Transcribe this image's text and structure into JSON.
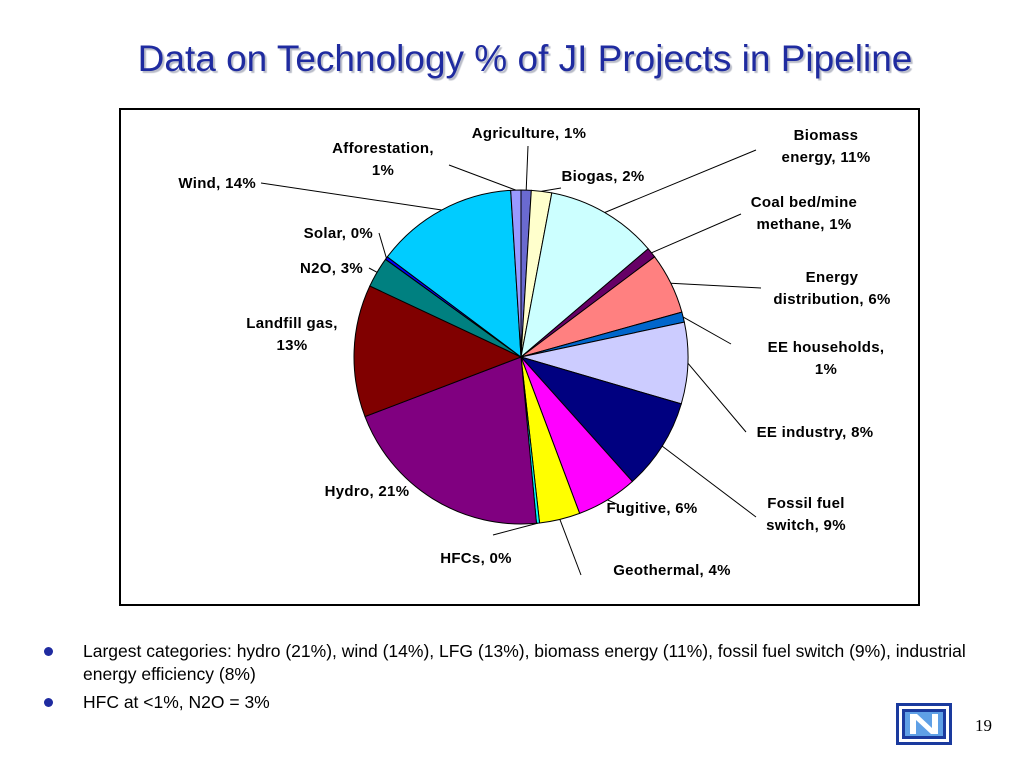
{
  "title": "Data on Technology % of JI Projects in Pipeline",
  "chart_data": {
    "type": "pie",
    "title": "",
    "slices": [
      {
        "label": "Agriculture, 1%",
        "value": 1,
        "color": "#6a6ad0"
      },
      {
        "label": "Biogas, 2%",
        "value": 2,
        "color": "#ffffcc"
      },
      {
        "label": "Biomass energy, 11%",
        "value": 11,
        "color": "#ccffff"
      },
      {
        "label": "Coal bed/mine methane, 1%",
        "value": 1,
        "color": "#660066"
      },
      {
        "label": "Energy distribution, 6%",
        "value": 6,
        "color": "#ff8080"
      },
      {
        "label": "EE households, 1%",
        "value": 1,
        "color": "#0066cc"
      },
      {
        "label": "EE industry, 8%",
        "value": 8,
        "color": "#ccccff"
      },
      {
        "label": "Fossil fuel switch, 9%",
        "value": 9,
        "color": "#000080"
      },
      {
        "label": "Fugitive, 6%",
        "value": 6,
        "color": "#ff00ff"
      },
      {
        "label": "Geothermal, 4%",
        "value": 4,
        "color": "#ffff00"
      },
      {
        "label": "HFCs, 0%",
        "value": 0,
        "color": "#00ffff"
      },
      {
        "label": "Hydro, 21%",
        "value": 21,
        "color": "#800080"
      },
      {
        "label": "Landfill gas, 13%",
        "value": 13,
        "color": "#800000"
      },
      {
        "label": "N2O, 3%",
        "value": 3,
        "color": "#008080"
      },
      {
        "label": "Solar, 0%",
        "value": 0,
        "color": "#0000ff"
      },
      {
        "label": "Wind, 14%",
        "value": 14,
        "color": "#00ccff"
      },
      {
        "label": "Afforestation, 1%",
        "value": 1,
        "color": "#9999ff"
      }
    ]
  },
  "bullets": [
    "Largest categories: hydro (21%), wind (14%), LFG (13%), biomass energy (11%), fossil fuel switch (9%), industrial energy efficiency (8%)",
    "HFC at <1%, N2O = 3%"
  ],
  "page_number": "19"
}
